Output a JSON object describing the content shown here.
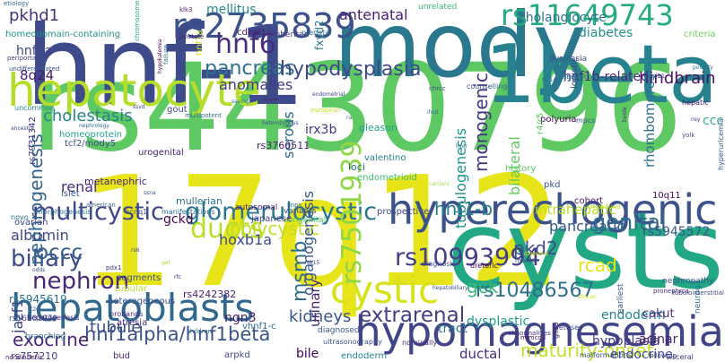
{
  "words": [
    {
      "text": "rs4430796",
      "color": "#5ec962"
    },
    {
      "text": "17q12",
      "color": "#e7e419"
    },
    {
      "text": "hnf-1",
      "color": "#3e4a89"
    },
    {
      "text": "mody",
      "color": "#2a788e"
    },
    {
      "text": "1beta",
      "color": "#26828e"
    },
    {
      "text": "cysts",
      "color": "#22a884"
    },
    {
      "text": "hepatocyte",
      "color": "#b5de2b"
    },
    {
      "text": "hyperechogenic",
      "color": "#3b528b"
    },
    {
      "text": "hypomagnesemia",
      "color": "#414487"
    },
    {
      "text": "hepatoblasts",
      "color": "#31688e"
    },
    {
      "text": "cystic",
      "color": "#d8e219"
    },
    {
      "text": "rs2735839",
      "color": "#3b528b"
    },
    {
      "text": "rs11649743",
      "color": "#25ab82"
    },
    {
      "text": "hnf6",
      "color": "#472d7b"
    },
    {
      "text": "pancreas",
      "color": "#2c728e"
    },
    {
      "text": "hypodysplasia",
      "color": "#3e4989"
    },
    {
      "text": "multicystic",
      "color": "#3f4788"
    },
    {
      "text": "glomerulocystic",
      "color": "#2a768e"
    },
    {
      "text": "rs10993994",
      "color": "#433e85"
    },
    {
      "text": "rs10486567",
      "color": "#2d708e"
    },
    {
      "text": "hnf1alpha/hnf1beta",
      "color": "#3a538b"
    },
    {
      "text": "nephron",
      "color": "#482878"
    },
    {
      "text": "biliary",
      "color": "#3d4d8a"
    },
    {
      "text": "ducts",
      "color": "#b8de29"
    },
    {
      "text": "polycystic",
      "color": "#bddf26"
    },
    {
      "text": "genital",
      "color": "#2f6c8e"
    },
    {
      "text": "occc",
      "color": "#355f8d"
    },
    {
      "text": "rs7501939",
      "color": "#8fd744"
    },
    {
      "text": "gck",
      "color": "#38b977"
    },
    {
      "text": "hnf1-b",
      "color": "#287c8e"
    },
    {
      "text": "pkd2",
      "color": "#3e4c8a"
    },
    {
      "text": "extrarenal",
      "color": "#433d84"
    },
    {
      "text": "kidneys",
      "color": "#39558c"
    },
    {
      "text": "exocrine",
      "color": "#482576"
    },
    {
      "text": "maturity-onset",
      "color": "#c2df23"
    },
    {
      "text": "tubule",
      "color": "#3c508b"
    },
    {
      "text": "msmb",
      "color": "#2e6e8e"
    },
    {
      "text": "cholestasis",
      "color": "#26828e"
    },
    {
      "text": "pkhd1",
      "color": "#46327e"
    },
    {
      "text": "antenatal",
      "color": "#482173"
    },
    {
      "text": "cholangiocyte",
      "color": "#2d718e"
    },
    {
      "text": "diabetes",
      "color": "#20938c"
    },
    {
      "text": "hindbrain",
      "color": "#471164"
    },
    {
      "text": "mellitus",
      "color": "#23898e"
    },
    {
      "text": "8q24",
      "color": "#481a6c"
    },
    {
      "text": "hnf4a",
      "color": "#3f4889"
    },
    {
      "text": "anomalies",
      "color": "#443a83"
    },
    {
      "text": "monogenic",
      "color": "#453781"
    },
    {
      "text": "bilateral",
      "color": "#63cb5f"
    },
    {
      "text": "pancreatic",
      "color": "#38588c"
    },
    {
      "text": "rhombomeres",
      "color": "#2c738e"
    },
    {
      "text": "ccc",
      "color": "#30b07a"
    },
    {
      "text": "hnf1b-related",
      "color": "#482979"
    },
    {
      "text": "nephrogenesis",
      "color": "#32658e"
    },
    {
      "text": "renal",
      "color": "#472f7d"
    },
    {
      "text": "serous",
      "color": "#31688e"
    },
    {
      "text": "irx3b",
      "color": "#463480"
    },
    {
      "text": "gckd",
      "color": "#440154"
    },
    {
      "text": "hoxb1a",
      "color": "#3d4e8a"
    },
    {
      "text": "ngn3",
      "color": "#481b6d"
    },
    {
      "text": "rcad",
      "color": "#e5e419"
    },
    {
      "text": "intrahepatic",
      "color": "#bade28"
    },
    {
      "text": "rs5945572",
      "color": "#3a548c"
    },
    {
      "text": "tubulogenesis",
      "color": "#1f948c"
    },
    {
      "text": "organogenesis",
      "color": "#38588c"
    },
    {
      "text": "urinary",
      "color": "#482475"
    },
    {
      "text": "dysplastic",
      "color": "#1e9d89"
    },
    {
      "text": "hypoplasia",
      "color": "#443983"
    },
    {
      "text": "endoderm",
      "color": "#25848e"
    },
    {
      "text": "cakut",
      "color": "#472e7c"
    },
    {
      "text": "acinar",
      "color": "#482071"
    },
    {
      "text": "tract",
      "color": "#2a788e"
    },
    {
      "text": "ductal",
      "color": "#472c7a"
    },
    {
      "text": "endocrine",
      "color": "#3e4a89"
    },
    {
      "text": "bile",
      "color": "#440256"
    },
    {
      "text": "albumin",
      "color": "#3f4889"
    },
    {
      "text": "jazf1",
      "color": "#414487"
    },
    {
      "text": "fxyd2",
      "color": "#277f8e"
    },
    {
      "text": "10q11",
      "color": "#450559"
    },
    {
      "text": "rs7931342",
      "color": "#46307e"
    },
    {
      "text": "rs5945619",
      "color": "#2c738e"
    },
    {
      "text": "hnf1a",
      "color": "#d2e21b"
    },
    {
      "text": "rs4242382",
      "color": "#482374"
    },
    {
      "text": "rs16901979",
      "color": "#3d4e8a"
    },
    {
      "text": "rs757210",
      "color": "#453882"
    },
    {
      "text": "rs3760511",
      "color": "#481f70"
    },
    {
      "text": "gleason",
      "color": "#20a386"
    },
    {
      "text": "loci",
      "color": "#2e6e8e"
    },
    {
      "text": "history",
      "color": "#5ac864"
    },
    {
      "text": "homeoprotein",
      "color": "#1f9e89"
    },
    {
      "text": "tcf2/mody5",
      "color": "#3b518b"
    },
    {
      "text": "metanephric",
      "color": "#482677"
    },
    {
      "text": "islet",
      "color": "#38598c"
    },
    {
      "text": "urogenital",
      "color": "#482374"
    },
    {
      "text": "valentino",
      "color": "#287d8e"
    },
    {
      "text": "endometrioid",
      "color": "#3bbb75"
    },
    {
      "text": "gout",
      "color": "#3e4989"
    },
    {
      "text": "multipotent",
      "color": "#2e6f8e"
    },
    {
      "text": "mullerian",
      "color": "#2d708e"
    },
    {
      "text": "autosomal",
      "color": "#48186a"
    },
    {
      "text": "polyuria",
      "color": "#440154"
    },
    {
      "text": "r4/r5",
      "color": "#5ec962"
    },
    {
      "text": "pkd",
      "color": "#38588c"
    },
    {
      "text": "cohort",
      "color": "#481b6d"
    },
    {
      "text": "ultrasound",
      "color": "#c0df25"
    },
    {
      "text": "unrelated",
      "color": "#38b977"
    },
    {
      "text": "cdkal1",
      "color": "#481769"
    },
    {
      "text": "prenatal",
      "color": "#2f6c8e"
    },
    {
      "text": "inherited",
      "color": "#433e85"
    },
    {
      "text": "logistic",
      "color": "#3f4788"
    },
    {
      "text": "rs1447295",
      "color": "#2e6f8e"
    },
    {
      "text": "reabsorption",
      "color": "#2a788e"
    },
    {
      "text": "dysplasia",
      "color": "#3c4f8a"
    },
    {
      "text": "prostate",
      "color": "#482576"
    },
    {
      "text": "klk3",
      "color": "#481769"
    },
    {
      "text": "etiology",
      "color": "#31688e"
    },
    {
      "text": "homeodomain-containing",
      "color": "#20928c"
    },
    {
      "text": "periportal",
      "color": "#453882"
    },
    {
      "text": "undifferentiated",
      "color": "#3a538b"
    },
    {
      "text": "hypokalemia",
      "color": "#440154"
    },
    {
      "text": "failure",
      "color": "#287d8e"
    },
    {
      "text": "chromosome",
      "color": "#22a884"
    },
    {
      "text": "criteria",
      "color": "#6ccd5a"
    },
    {
      "text": "polarity",
      "color": "#2c728e"
    },
    {
      "text": "endometrial",
      "color": "#3f4788"
    },
    {
      "text": "european",
      "color": "#c8e020"
    },
    {
      "text": "ra",
      "color": "#2a778e"
    },
    {
      "text": "ihsd",
      "color": "#2d708e"
    },
    {
      "text": "liver",
      "color": "#2c738e"
    },
    {
      "text": "carriers",
      "color": "#a5db36"
    },
    {
      "text": "mpcs",
      "color": "#39558c"
    },
    {
      "text": "kcnj11",
      "color": "#3e4c8a"
    },
    {
      "text": "hepatic",
      "color": "#48186a"
    },
    {
      "text": "nsy",
      "color": "#482878"
    },
    {
      "text": "yolk",
      "color": "#3f4889"
    },
    {
      "text": "hyperuricemia",
      "color": "#3a548c"
    },
    {
      "text": "henle",
      "color": "#472e7c"
    },
    {
      "text": "uncommon",
      "color": "#24878e"
    },
    {
      "text": "morphogenesis",
      "color": "#2c738e"
    },
    {
      "text": "american",
      "color": "#355e8d"
    },
    {
      "text": "novo",
      "color": "#2c718e"
    },
    {
      "text": "kcnq1",
      "color": "#3b528b"
    },
    {
      "text": "manifestations",
      "color": "#2e6f8e"
    },
    {
      "text": "ovarian",
      "color": "#3f4788"
    },
    {
      "text": "pdx1",
      "color": "#472e7c"
    },
    {
      "text": "segments",
      "color": "#3b518b"
    },
    {
      "text": "tubular",
      "color": "#b5de2b"
    },
    {
      "text": "heterogeneous",
      "color": "#3a548c"
    },
    {
      "text": "probands",
      "color": "#472f7d"
    },
    {
      "text": "atresia",
      "color": "#482979"
    },
    {
      "text": "vhnf1-c",
      "color": "#31688e"
    },
    {
      "text": "diagnosed",
      "color": "#38598c"
    },
    {
      "text": "ultrasonography",
      "color": "#3b528b"
    },
    {
      "text": "nominally",
      "color": "#472c7a"
    },
    {
      "text": "mimcd3",
      "color": "#481467"
    },
    {
      "text": "fetuses",
      "color": "#3e4a89"
    },
    {
      "text": "bud",
      "color": "#482878"
    },
    {
      "text": "arpkd",
      "color": "#3f4889"
    },
    {
      "text": "endoderm",
      "color": "#25848e"
    },
    {
      "text": "malformations",
      "color": "#3b528b"
    },
    {
      "text": "visceral",
      "color": "#46327e"
    },
    {
      "text": "nondiabetic",
      "color": "#482374"
    },
    {
      "text": "branching",
      "color": "#2d708e"
    },
    {
      "text": "children",
      "color": "#2e6e8e"
    },
    {
      "text": "hepatogenesis",
      "color": "#472d7b"
    },
    {
      "text": "t2d",
      "color": "#38598c"
    },
    {
      "text": "odds",
      "color": "#3b528b"
    },
    {
      "text": "prospective",
      "color": "#3f4889"
    },
    {
      "text": "congenital",
      "color": "#5ac864"
    },
    {
      "text": "variants",
      "color": "#3b528b"
    },
    {
      "text": "japanese",
      "color": "#414487"
    },
    {
      "text": "snps",
      "color": "#31688e"
    },
    {
      "text": "diagnosis",
      "color": "#3e4a89"
    },
    {
      "text": "ureteric",
      "color": "#440154"
    },
    {
      "text": "mody3",
      "color": "#3b528b"
    },
    {
      "text": "abnormalities",
      "color": "#46327e"
    },
    {
      "text": "glis3",
      "color": "#482475"
    },
    {
      "text": "earliest",
      "color": "#3a548c"
    },
    {
      "text": "neurog3",
      "color": "#2e6f8e"
    },
    {
      "text": "nephropathy",
      "color": "#3b518b"
    },
    {
      "text": "pronephros",
      "color": "#472d7b"
    },
    {
      "text": "tubulointerstitial",
      "color": "#3f4788"
    },
    {
      "text": "follow-up",
      "color": "#414487"
    },
    {
      "text": "counselling",
      "color": "#38598c"
    },
    {
      "text": "chrcc",
      "color": "#3e4a89"
    },
    {
      "text": "saving",
      "color": "#2e6f8e"
    },
    {
      "text": "score",
      "color": "#482677"
    },
    {
      "text": "heterozygous",
      "color": "#3b528b"
    },
    {
      "text": "ancestry",
      "color": "#3f4889"
    },
    {
      "text": "nephrology",
      "color": "#31688e"
    },
    {
      "text": "ssna",
      "color": "#3b528b"
    },
    {
      "text": "ssvd",
      "color": "#414487"
    },
    {
      "text": "rs6",
      "color": "#3e4a89"
    },
    {
      "text": "rfc",
      "color": "#482475"
    },
    {
      "text": "gel",
      "color": "#a5db36"
    },
    {
      "text": "sk15",
      "color": "#3b528b"
    },
    {
      "text": "hepatobiliary",
      "color": "#3f4788"
    },
    {
      "text": "digestive",
      "color": "#c8e020"
    },
    {
      "text": "african",
      "color": "#c8e020"
    },
    {
      "text": "pkd1",
      "color": "#3b528b"
    },
    {
      "text": "cyst",
      "color": "#5ac864"
    }
  ]
}
